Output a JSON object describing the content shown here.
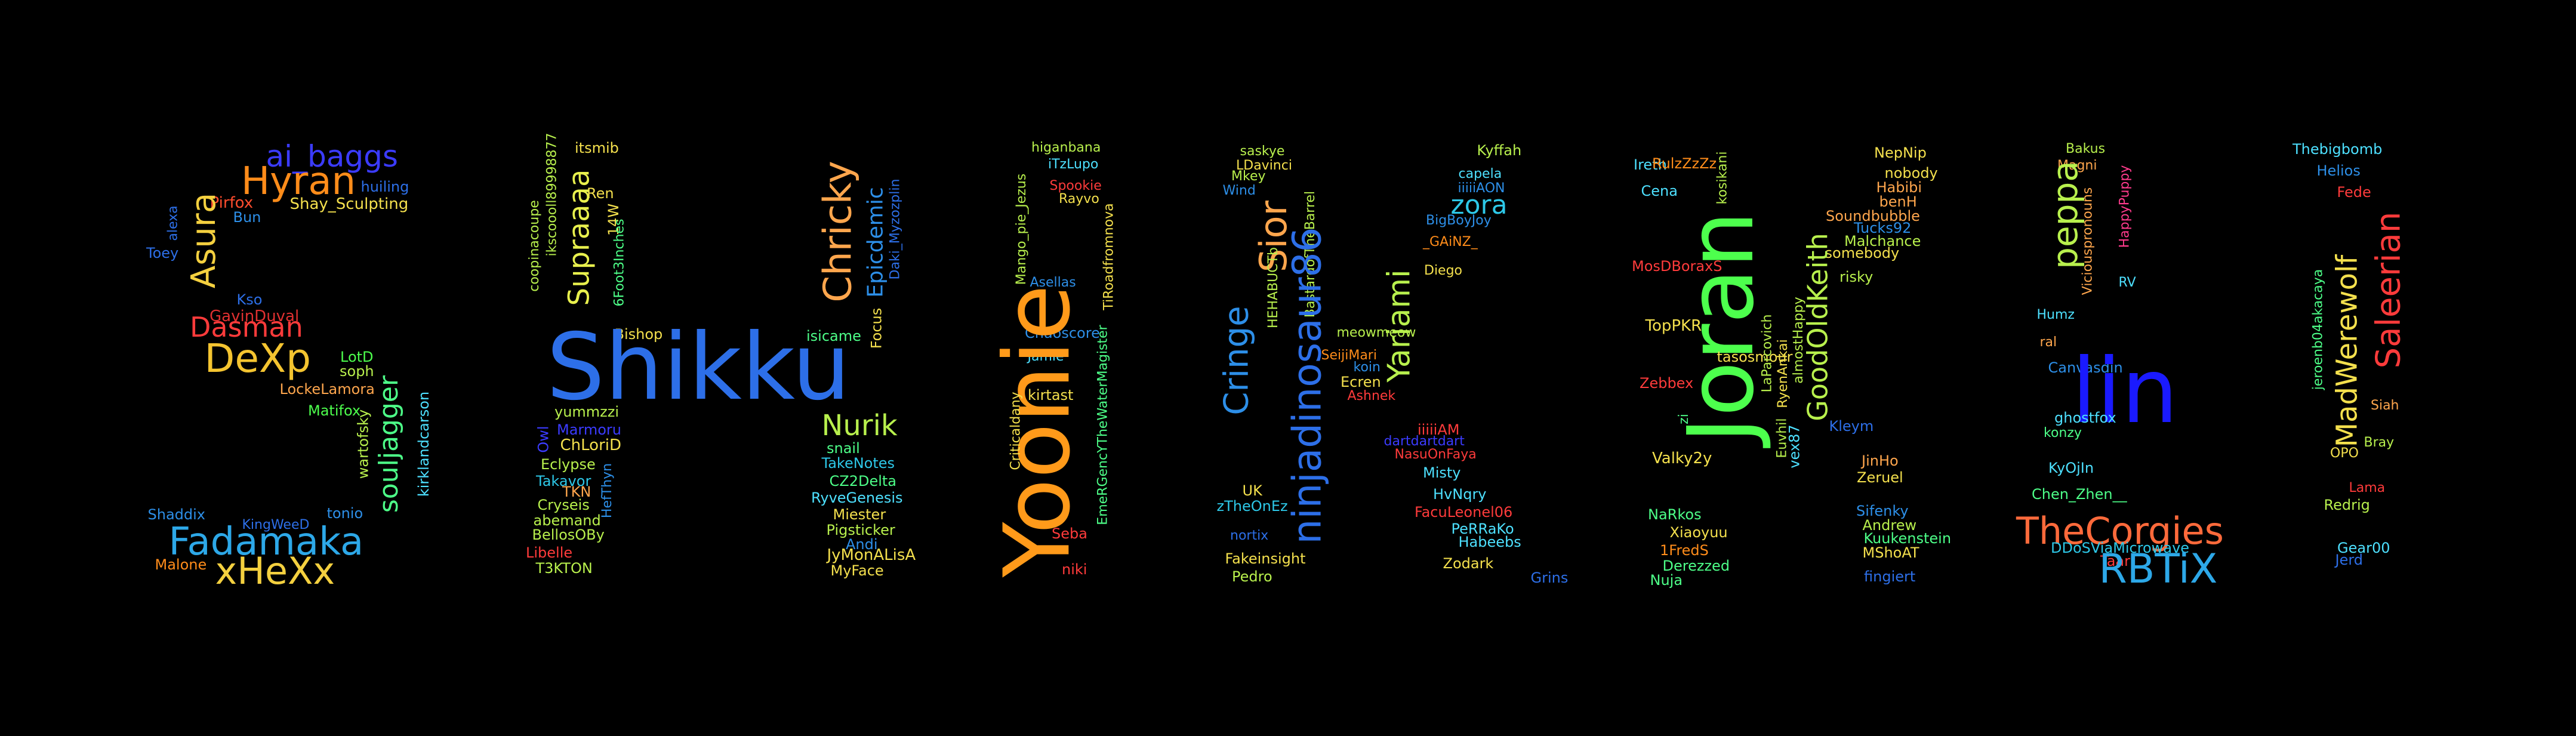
{
  "words": [
    {
      "text": "ai_baggs",
      "color": "#3b3bff"
    },
    {
      "text": "Hyran",
      "color": "#ff8c1a"
    },
    {
      "text": "huiling",
      "color": "#2d6fe8"
    },
    {
      "text": "Pirfox",
      "color": "#ff4d2e"
    },
    {
      "text": "Shay_Sculpting",
      "color": "#f4e04d"
    },
    {
      "text": "Bun",
      "color": "#2d8fe8"
    },
    {
      "text": "alexa",
      "color": "#2d6fe8"
    },
    {
      "text": "Toey",
      "color": "#2d6fe8"
    },
    {
      "text": "Asura",
      "color": "#f4d03f"
    },
    {
      "text": "Kso",
      "color": "#2d6fe8"
    },
    {
      "text": "GavinDuval",
      "color": "#e03030"
    },
    {
      "text": "Dasman",
      "color": "#ff3b3b"
    },
    {
      "text": "DeXp",
      "color": "#f4c430"
    },
    {
      "text": "LotD",
      "color": "#4dff4d"
    },
    {
      "text": "soph",
      "color": "#b8f04d"
    },
    {
      "text": "LockeLamora",
      "color": "#ffa64d"
    },
    {
      "text": "Matifox",
      "color": "#4dff4d"
    },
    {
      "text": "wartofsky",
      "color": "#b8f04d"
    },
    {
      "text": "souljagger",
      "color": "#4dff88"
    },
    {
      "text": "kirklandcarson",
      "color": "#4de0ff"
    },
    {
      "text": "Shaddix",
      "color": "#2d8fe8"
    },
    {
      "text": "tonio",
      "color": "#2d8fe8"
    },
    {
      "text": "KingWeeD",
      "color": "#2d6fe8"
    },
    {
      "text": "Fadamaka",
      "color": "#2da8e8"
    },
    {
      "text": "Malone",
      "color": "#ff8c1a"
    },
    {
      "text": "xHeXx",
      "color": "#f4d03f"
    },
    {
      "text": "itsmib",
      "color": "#f4e04d"
    },
    {
      "text": "ikscoooll89998877",
      "color": "#b8f04d"
    },
    {
      "text": "Ren",
      "color": "#f4e04d"
    },
    {
      "text": "coopinacoupe",
      "color": "#b8f04d"
    },
    {
      "text": "Supraaaa",
      "color": "#e8f04d"
    },
    {
      "text": "14W",
      "color": "#f4e04d"
    },
    {
      "text": "6Foot3Inches",
      "color": "#4dff88"
    },
    {
      "text": "Bishop",
      "color": "#f4e04d"
    },
    {
      "text": "Shikku",
      "color": "#2d6fe8"
    },
    {
      "text": "yummzzi",
      "color": "#b8f04d"
    },
    {
      "text": "Owl",
      "color": "#3b3bff"
    },
    {
      "text": "Marmoru",
      "color": "#3b3bff"
    },
    {
      "text": "ChLoriD",
      "color": "#f4e04d"
    },
    {
      "text": "Eclypse",
      "color": "#b8f04d"
    },
    {
      "text": "Takavor",
      "color": "#2dc8e8"
    },
    {
      "text": "TKN",
      "color": "#ffa64d"
    },
    {
      "text": "HefThyn",
      "color": "#2d8fe8"
    },
    {
      "text": "Cryseis",
      "color": "#b8f04d"
    },
    {
      "text": "abemand",
      "color": "#b8f04d"
    },
    {
      "text": "BellosOBy",
      "color": "#b8f04d"
    },
    {
      "text": "Libelle",
      "color": "#ff3b3b"
    },
    {
      "text": "T3KTON",
      "color": "#b8f04d"
    },
    {
      "text": "Chricky",
      "color": "#ffa64d"
    },
    {
      "text": "Epicdemic",
      "color": "#2d8fe8"
    },
    {
      "text": "Daki_Myzozplin",
      "color": "#2d6fe8"
    },
    {
      "text": "Focus",
      "color": "#f4e04d"
    },
    {
      "text": "isicame",
      "color": "#4dff88"
    },
    {
      "text": "Nurik",
      "color": "#b8f04d"
    },
    {
      "text": "snail",
      "color": "#4dff88"
    },
    {
      "text": "TakeNotes",
      "color": "#2dc8e8"
    },
    {
      "text": "CZ2Delta",
      "color": "#4dff88"
    },
    {
      "text": "RyveGenesis",
      "color": "#4de0ff"
    },
    {
      "text": "Miester",
      "color": "#f4e04d"
    },
    {
      "text": "Pigsticker",
      "color": "#b8f04d"
    },
    {
      "text": "Andi",
      "color": "#2d8fe8"
    },
    {
      "text": "JyMonALisA",
      "color": "#f4e04d"
    },
    {
      "text": "MyFace",
      "color": "#f4e04d"
    },
    {
      "text": "higanbana",
      "color": "#b8f04d"
    },
    {
      "text": "iTzLupo",
      "color": "#4de0ff"
    },
    {
      "text": "Mango_pie_Jezus",
      "color": "#b8f04d"
    },
    {
      "text": "Spookie",
      "color": "#ff3b3b"
    },
    {
      "text": "Rayvo",
      "color": "#f4e04d"
    },
    {
      "text": "TiRoadfromnova",
      "color": "#f4e04d"
    },
    {
      "text": "Asellas",
      "color": "#2d8fe8"
    },
    {
      "text": "Chaoscore",
      "color": "#2d8fe8"
    },
    {
      "text": "Jamie",
      "color": "#4de0ff"
    },
    {
      "text": "kirtast",
      "color": "#f4e04d"
    },
    {
      "text": "EmeRGencYTheWaterMagister",
      "color": "#4dff88"
    },
    {
      "text": "Yoonie",
      "color": "#ff9a1a"
    },
    {
      "text": "Criticaldany",
      "color": "#f4e04d"
    },
    {
      "text": "Seba",
      "color": "#ff3b3b"
    },
    {
      "text": "niki",
      "color": "#ff3b3b"
    },
    {
      "text": "saskye",
      "color": "#b8f04d"
    },
    {
      "text": "LDavinci",
      "color": "#f4e04d"
    },
    {
      "text": "Mkey",
      "color": "#b8f04d"
    },
    {
      "text": "Wind",
      "color": "#2d8fe8"
    },
    {
      "text": "Sior",
      "color": "#ffa64d"
    },
    {
      "text": "HEHABUCTb",
      "color": "#b8f04d"
    },
    {
      "text": "BastardofTheBarrel",
      "color": "#b8f04d"
    },
    {
      "text": "Cringe",
      "color": "#2d8fe8"
    },
    {
      "text": "ninjadinosaur86",
      "color": "#2d6fe8"
    },
    {
      "text": "UK",
      "color": "#f4e04d"
    },
    {
      "text": "zTheOnEz",
      "color": "#2dc8e8"
    },
    {
      "text": "nortix",
      "color": "#2d6fe8"
    },
    {
      "text": "Fakeinsight",
      "color": "#f4e04d"
    },
    {
      "text": "Pedro",
      "color": "#b8f04d"
    },
    {
      "text": "Kyffah",
      "color": "#b8f04d"
    },
    {
      "text": "capela",
      "color": "#4de0ff"
    },
    {
      "text": "iiiiiAON",
      "color": "#2d8fe8"
    },
    {
      "text": "zora",
      "color": "#2dc8e8"
    },
    {
      "text": "BigBoyJoy",
      "color": "#2d8fe8"
    },
    {
      "text": "_GAiNZ_",
      "color": "#ff8c1a"
    },
    {
      "text": "Diego",
      "color": "#f4e04d"
    },
    {
      "text": "Yariami",
      "color": "#b8f04d"
    },
    {
      "text": "meowmeow",
      "color": "#b8f04d"
    },
    {
      "text": "SeijiMari",
      "color": "#ff8c1a"
    },
    {
      "text": "koin",
      "color": "#2d8fe8"
    },
    {
      "text": "Ecren",
      "color": "#f4e04d"
    },
    {
      "text": "Ashnek",
      "color": "#ff3b3b"
    },
    {
      "text": "iiiiiAM",
      "color": "#ff3b3b"
    },
    {
      "text": "dartdartdart",
      "color": "#3b3bff"
    },
    {
      "text": "NasuOnFaya",
      "color": "#ff3b3b"
    },
    {
      "text": "Misty",
      "color": "#4de0ff"
    },
    {
      "text": "HvNqry",
      "color": "#4de0ff"
    },
    {
      "text": "FacuLeonel06",
      "color": "#ff3b3b"
    },
    {
      "text": "PeRRaKo",
      "color": "#4de0ff"
    },
    {
      "text": "Habeebs",
      "color": "#4de0ff"
    },
    {
      "text": "Zodark",
      "color": "#f4e04d"
    },
    {
      "text": "Grins",
      "color": "#2d6fe8"
    },
    {
      "text": "Ireth",
      "color": "#4de0ff"
    },
    {
      "text": "RulzZzZz",
      "color": "#ff8c1a"
    },
    {
      "text": "Cena",
      "color": "#4de0ff"
    },
    {
      "text": "kosikani",
      "color": "#b8f04d"
    },
    {
      "text": "MosDBoraxS",
      "color": "#ff3b3b"
    },
    {
      "text": "Joran",
      "color": "#4dff4d"
    },
    {
      "text": "TopPKR",
      "color": "#f4e04d"
    },
    {
      "text": "tasosmour",
      "color": "#f4e04d"
    },
    {
      "text": "Zebbex",
      "color": "#ff3b3b"
    },
    {
      "text": "zi",
      "color": "#4dff88"
    },
    {
      "text": "Valky2y",
      "color": "#f4e04d"
    },
    {
      "text": "NaRkos",
      "color": "#4dff88"
    },
    {
      "text": "Xiaoyuu",
      "color": "#f4e04d"
    },
    {
      "text": "1FredS",
      "color": "#ff8c1a"
    },
    {
      "text": "Derezzed",
      "color": "#4dff88"
    },
    {
      "text": "Nuja",
      "color": "#4dff88"
    },
    {
      "text": "NepNip",
      "color": "#f4e04d"
    },
    {
      "text": "nobody",
      "color": "#f4e04d"
    },
    {
      "text": "Habibi",
      "color": "#ffa64d"
    },
    {
      "text": "benH",
      "color": "#ffa64d"
    },
    {
      "text": "Soundbubble",
      "color": "#ffa64d"
    },
    {
      "text": "Tucks92",
      "color": "#2d8fe8"
    },
    {
      "text": "Malchance",
      "color": "#b8f04d"
    },
    {
      "text": "somebody",
      "color": "#f4e04d"
    },
    {
      "text": "risky",
      "color": "#b8f04d"
    },
    {
      "text": "LaParcovich",
      "color": "#b8f04d"
    },
    {
      "text": "RyenAnkai",
      "color": "#f4e04d"
    },
    {
      "text": "almostHappy",
      "color": "#b8f04d"
    },
    {
      "text": "GoodOldKeith",
      "color": "#b8f04d"
    },
    {
      "text": "Kleym",
      "color": "#2d6fe8"
    },
    {
      "text": "Euvhil",
      "color": "#b8f04d"
    },
    {
      "text": "vex87",
      "color": "#4de0ff"
    },
    {
      "text": "JinHo",
      "color": "#ffa64d"
    },
    {
      "text": "Zeruel",
      "color": "#f4e04d"
    },
    {
      "text": "Sifenky",
      "color": "#2d8fe8"
    },
    {
      "text": "Andrew",
      "color": "#b8f04d"
    },
    {
      "text": "Kuukenstein",
      "color": "#4dff88"
    },
    {
      "text": "MShoAT",
      "color": "#f4e04d"
    },
    {
      "text": "fingiert",
      "color": "#2d6fe8"
    },
    {
      "text": "Bakus",
      "color": "#b8f04d"
    },
    {
      "text": "Magni",
      "color": "#ffa64d"
    },
    {
      "text": "peppa",
      "color": "#b8f04d"
    },
    {
      "text": "Viciouspronouns",
      "color": "#ffa64d"
    },
    {
      "text": "HappyPuppy",
      "color": "#ff3b8c"
    },
    {
      "text": "RV",
      "color": "#4de0ff"
    },
    {
      "text": "Humz",
      "color": "#4de0ff"
    },
    {
      "text": "ral",
      "color": "#ffa64d"
    },
    {
      "text": "Canvasdin",
      "color": "#2d8fe8"
    },
    {
      "text": "lin",
      "color": "#1a1aff"
    },
    {
      "text": "ghostfox",
      "color": "#4de0ff"
    },
    {
      "text": "konzy",
      "color": "#4dff88"
    },
    {
      "text": "KyOjIn",
      "color": "#4de0ff"
    },
    {
      "text": "Chen_Zhen__",
      "color": "#4dff88"
    },
    {
      "text": "TheCorgies",
      "color": "#ff6a3b"
    },
    {
      "text": "DDoSViaMicrowave",
      "color": "#2dc8e8"
    },
    {
      "text": "Taar",
      "color": "#ff3b3b"
    },
    {
      "text": "RBTiX",
      "color": "#2da8e8"
    },
    {
      "text": "Thebigbomb",
      "color": "#4de0ff"
    },
    {
      "text": "Helios",
      "color": "#2d8fe8"
    },
    {
      "text": "Fede",
      "color": "#ff3b3b"
    },
    {
      "text": "Saleerian",
      "color": "#ff3b3b"
    },
    {
      "text": "MadWerewolf",
      "color": "#f4e04d"
    },
    {
      "text": "jeroenb04akacaya",
      "color": "#4dff88"
    },
    {
      "text": "Siah",
      "color": "#ffa64d"
    },
    {
      "text": "Bray",
      "color": "#b8f04d"
    },
    {
      "text": "OPO",
      "color": "#f4e04d"
    },
    {
      "text": "Lama",
      "color": "#ff3b3b"
    },
    {
      "text": "Redrig",
      "color": "#b8f04d"
    },
    {
      "text": "Gear00",
      "color": "#4de0ff"
    },
    {
      "text": "Jerd",
      "color": "#2d6fe8"
    }
  ]
}
